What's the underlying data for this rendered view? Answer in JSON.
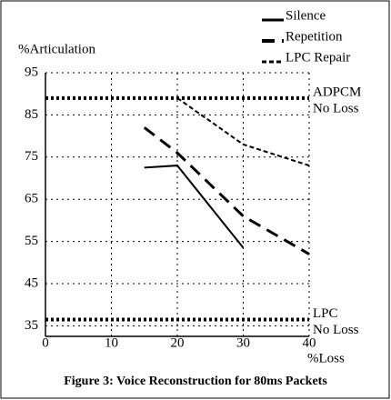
{
  "chart_data": {
    "type": "line",
    "title": "Figure 3: Voice Reconstruction for 80ms Packets",
    "y_label": "%Articulation",
    "x_label": "%Loss",
    "xlim": [
      0,
      40
    ],
    "xticks": [
      0,
      10,
      20,
      30,
      40
    ],
    "ylim": [
      32.5,
      95
    ],
    "yticks": [
      35,
      45,
      55,
      65,
      75,
      85,
      95
    ],
    "grid": true,
    "legend": "top-right",
    "series": [
      {
        "name": "Silence",
        "color": "#000000",
        "dash": "solid",
        "x": [
          15,
          20,
          30
        ],
        "values": [
          72.5,
          73,
          53.5
        ]
      },
      {
        "name": "Repetition",
        "color": "#000000",
        "dash": "long",
        "x": [
          15,
          20,
          30,
          40
        ],
        "values": [
          82,
          76,
          61,
          52
        ]
      },
      {
        "name": "LPC Repair",
        "color": "#000000",
        "dash": "short",
        "x": [
          20,
          30,
          40
        ],
        "values": [
          89,
          78,
          73
        ]
      }
    ],
    "reference_lines": [
      {
        "label": [
          "ADPCM",
          "No Loss"
        ],
        "value": 89
      },
      {
        "label": [
          "LPC",
          "No Loss"
        ],
        "value": 36.5
      }
    ]
  }
}
